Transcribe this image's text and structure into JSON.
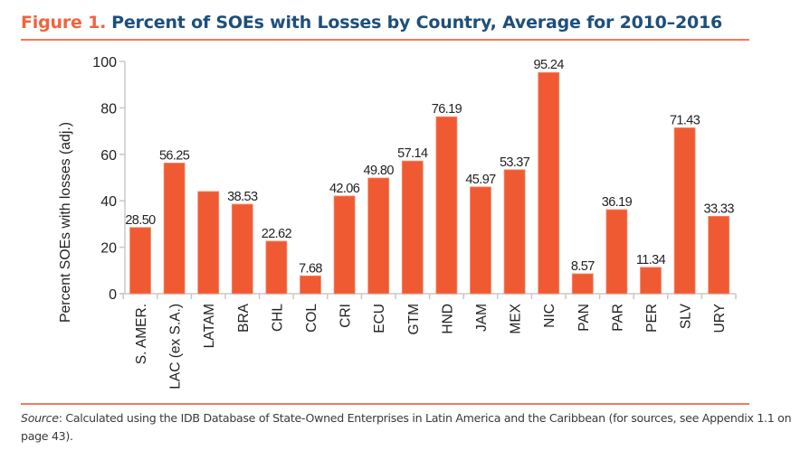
{
  "title": {
    "figure_label": "Figure 1.",
    "text": "Percent of SOEs with Losses by Country, Average for 2010–2016"
  },
  "colors": {
    "bar": "#f05a32",
    "figure_label": "#f0643c",
    "title": "#1d4f7c",
    "rule": "#f27a5c",
    "axis": "#c8c8c8"
  },
  "source": {
    "label": "Source",
    "text": ": Calculated using the IDB Database of State-Owned Enterprises in Latin America and the Caribbean (for sources, see Appendix 1.1 on page 43)."
  },
  "chart_data": {
    "type": "bar",
    "title": "Percent of SOEs with Losses by Country, Average for 2010–2016",
    "xlabel": "",
    "ylabel": "Percent SOEs with losses (adj.)",
    "ylim": [
      0,
      100
    ],
    "yticks": [
      0,
      20,
      40,
      60,
      80,
      100
    ],
    "grid": false,
    "legend": "none",
    "categories": [
      "S. AMER.",
      "LAC (ex S.A.)",
      "LATAM",
      "BRA",
      "CHL",
      "COL",
      "CRI",
      "ECU",
      "GTM",
      "HND",
      "JAM",
      "MEX",
      "NIC",
      "PAN",
      "PAR",
      "PER",
      "SLV",
      "URY"
    ],
    "values": [
      28.5,
      56.25,
      44.0,
      38.53,
      22.62,
      7.68,
      42.06,
      49.8,
      57.14,
      76.19,
      45.97,
      53.37,
      95.24,
      8.57,
      36.19,
      11.34,
      71.43,
      33.33
    ],
    "data_labels": [
      "28.50",
      "56.25",
      "",
      "38.53",
      "22.62",
      "7.68",
      "42.06",
      "49.80",
      "57.14",
      "76.19",
      "45.97",
      "53.37",
      "95.24",
      "8.57",
      "36.19",
      "11.34",
      "71.43",
      "33.33"
    ]
  }
}
